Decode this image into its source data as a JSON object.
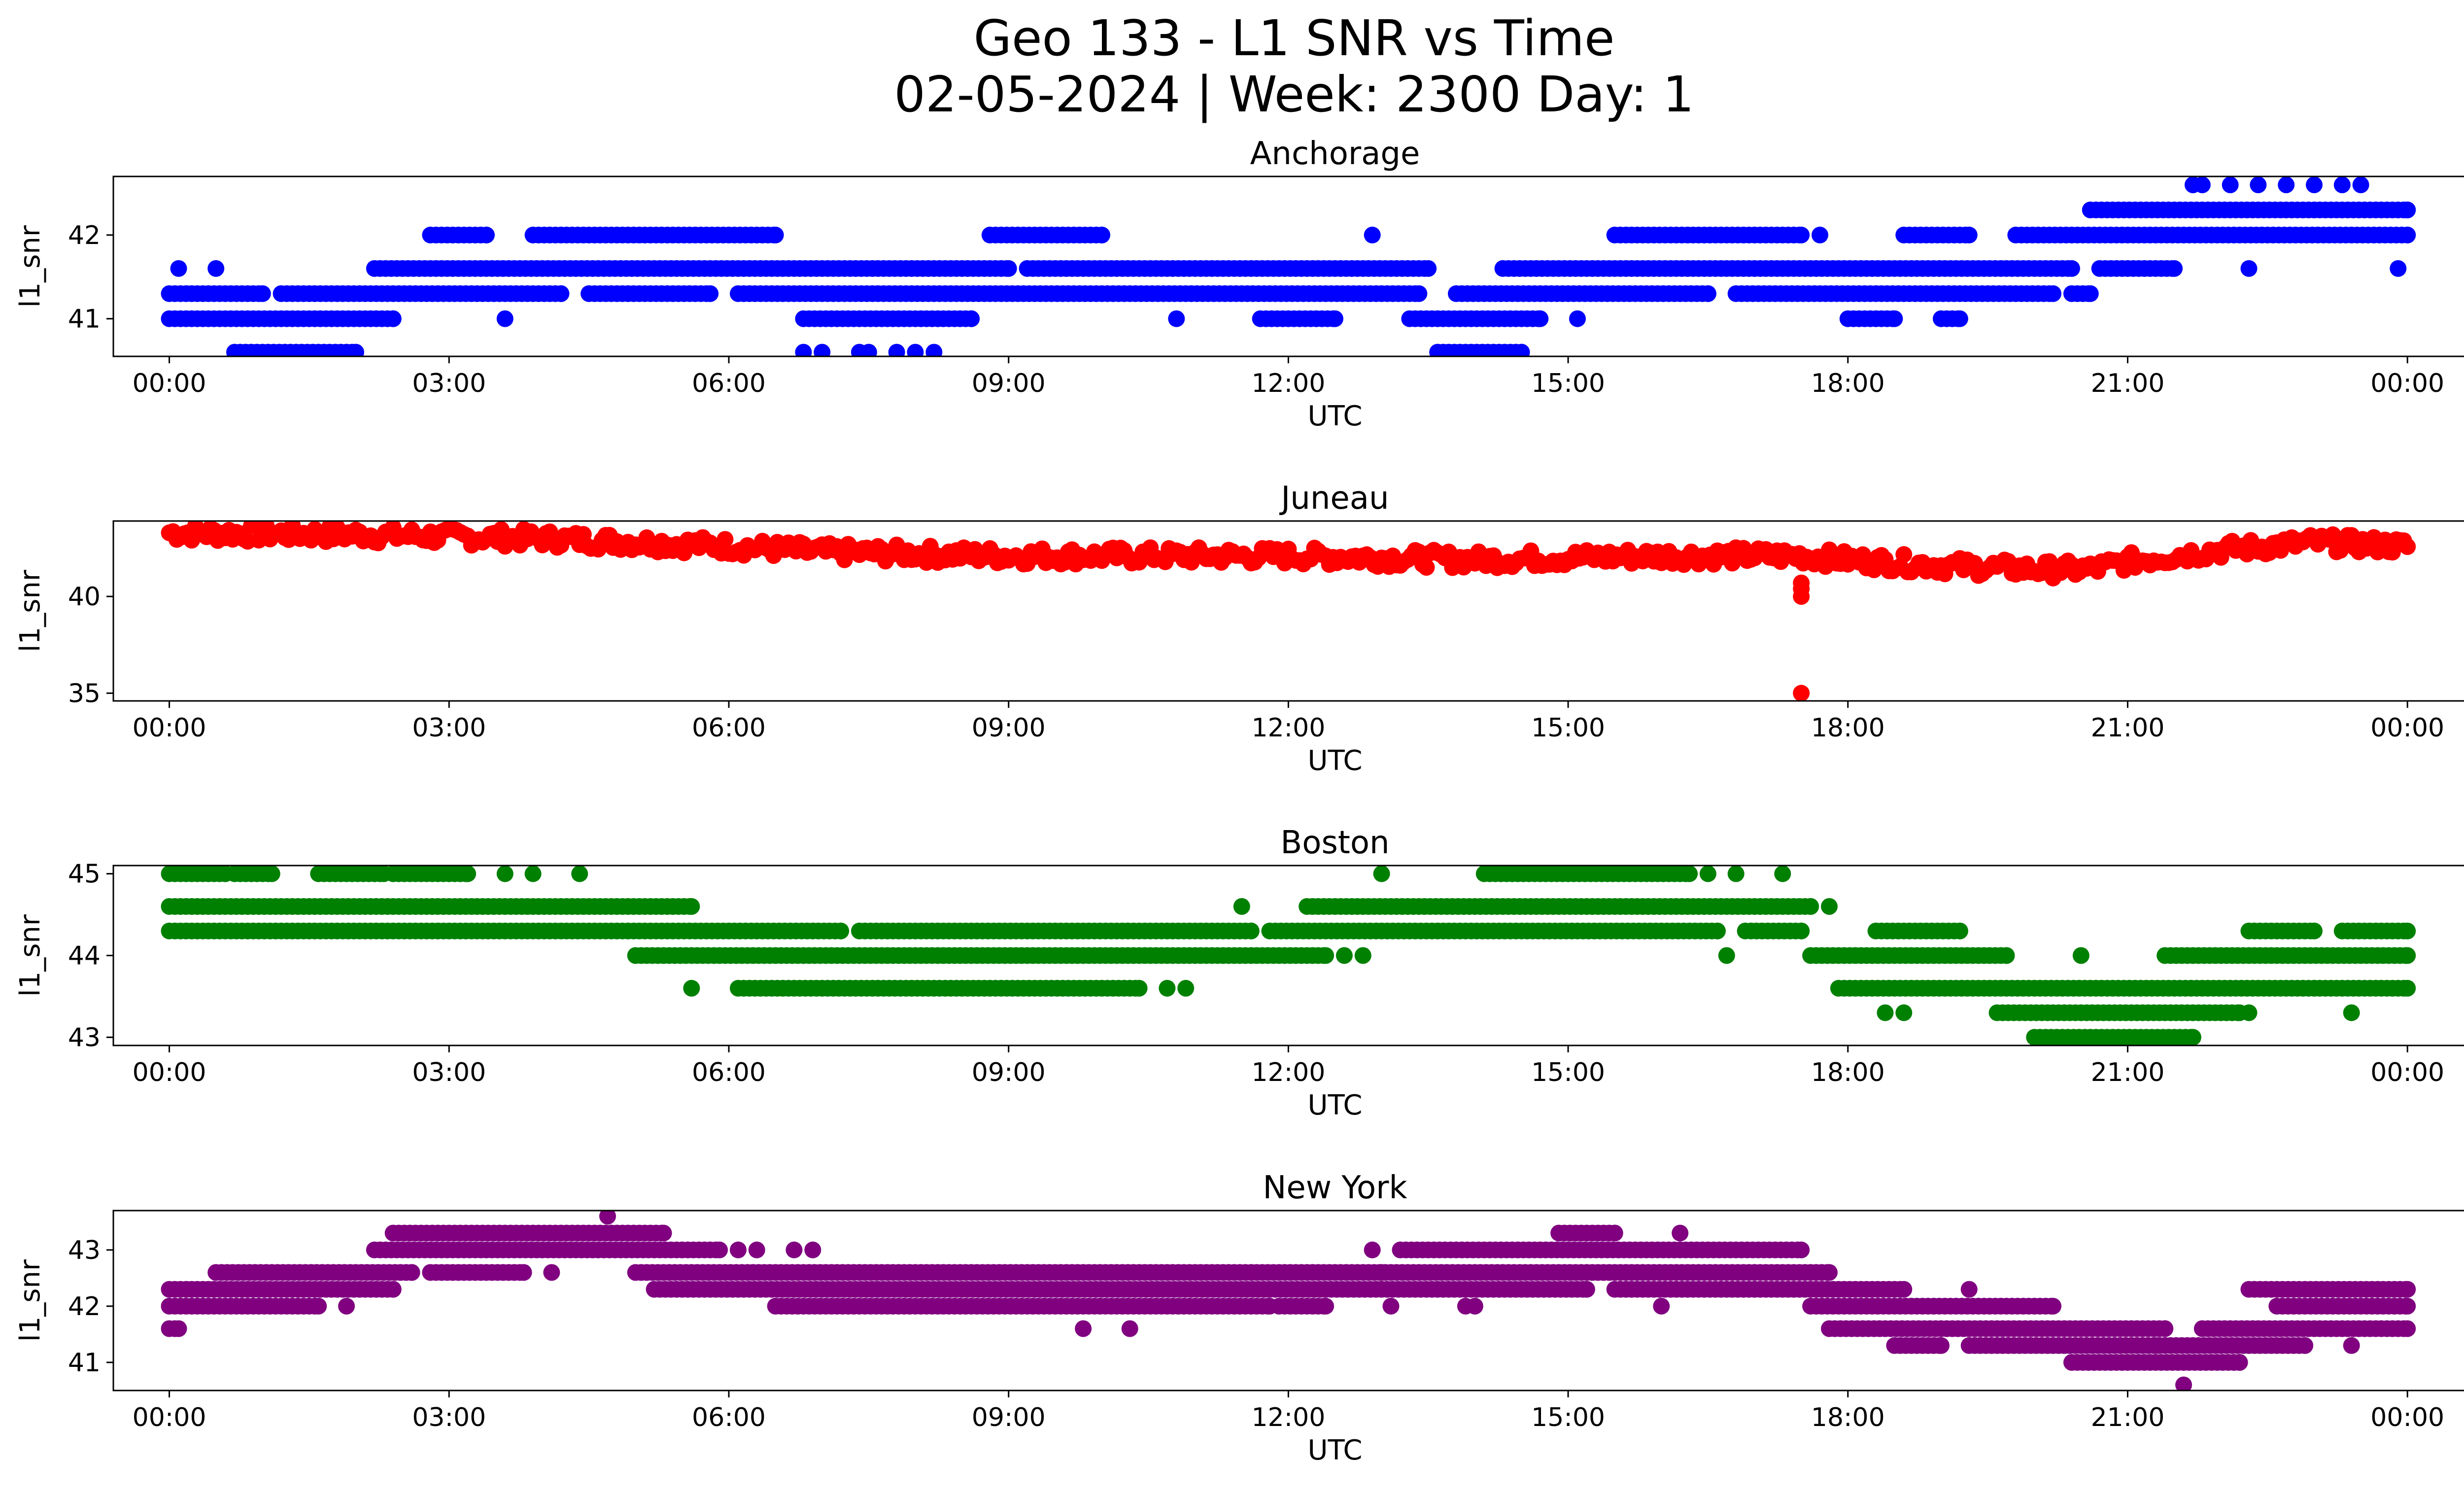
{
  "figure": {
    "title_line1": "Geo 133 - L1 SNR vs Time",
    "title_line2": "02-05-2024 | Week: 2300 Day: 1"
  },
  "chart_data": [
    {
      "type": "scatter",
      "title": "Anchorage",
      "xlabel": "UTC",
      "ylabel": "l1_snr",
      "color": "#0000ff",
      "xlim": [
        -0.6,
        25.6
      ],
      "ylim": [
        40.55,
        42.7
      ],
      "xticks": [
        0,
        3,
        6,
        9,
        12,
        15,
        18,
        21,
        24
      ],
      "xtick_labels": [
        "00:00",
        "03:00",
        "06:00",
        "09:00",
        "12:00",
        "15:00",
        "18:00",
        "21:00",
        "00:00"
      ],
      "yticks": [
        41,
        42
      ],
      "segments": [
        {
          "y": 41.0,
          "ranges": [
            [
              0.0,
              2.4
            ],
            [
              6.8,
              8.6
            ],
            [
              11.7,
              12.5
            ],
            [
              13.3,
              14.7
            ],
            [
              18.0,
              18.5
            ],
            [
              19.0,
              19.2
            ]
          ]
        },
        {
          "y": 41.3,
          "ranges": [
            [
              0.0,
              1.0
            ],
            [
              1.2,
              4.2
            ],
            [
              4.5,
              5.8
            ],
            [
              6.1,
              13.4
            ],
            [
              13.8,
              16.5
            ],
            [
              16.8,
              20.2
            ],
            [
              20.4,
              20.6
            ]
          ]
        },
        {
          "y": 41.6,
          "ranges": [
            [
              2.2,
              9.0
            ],
            [
              9.2,
              13.5
            ],
            [
              14.3,
              20.4
            ],
            [
              20.7,
              21.5
            ]
          ]
        },
        {
          "y": 42.0,
          "ranges": [
            [
              2.8,
              3.4
            ],
            [
              3.9,
              6.5
            ],
            [
              8.8,
              10.0
            ],
            [
              15.5,
              17.5
            ],
            [
              18.6,
              19.3
            ],
            [
              19.8,
              24.0
            ]
          ]
        },
        {
          "y": 42.3,
          "ranges": [
            [
              20.6,
              24.0
            ]
          ]
        },
        {
          "y": 40.6,
          "ranges": [
            [
              0.7,
              2.0
            ],
            [
              13.6,
              14.5
            ]
          ]
        }
      ],
      "points": [
        {
          "x": 0.1,
          "y": 41.6
        },
        {
          "x": 0.5,
          "y": 41.6
        },
        {
          "x": 3.6,
          "y": 41.0
        },
        {
          "x": 10.8,
          "y": 41.0
        },
        {
          "x": 12.9,
          "y": 42.0
        },
        {
          "x": 15.1,
          "y": 41.0
        },
        {
          "x": 17.7,
          "y": 42.0
        },
        {
          "x": 22.3,
          "y": 41.6
        },
        {
          "x": 6.8,
          "y": 40.6
        },
        {
          "x": 7.0,
          "y": 40.6
        },
        {
          "x": 7.4,
          "y": 40.6
        },
        {
          "x": 7.5,
          "y": 40.6
        },
        {
          "x": 7.8,
          "y": 40.6
        },
        {
          "x": 8.0,
          "y": 40.6
        },
        {
          "x": 8.2,
          "y": 40.6
        },
        {
          "x": 21.7,
          "y": 42.6
        },
        {
          "x": 21.8,
          "y": 42.6
        },
        {
          "x": 22.1,
          "y": 42.6
        },
        {
          "x": 22.4,
          "y": 42.6
        },
        {
          "x": 22.7,
          "y": 42.6
        },
        {
          "x": 23.0,
          "y": 42.6
        },
        {
          "x": 23.3,
          "y": 42.6
        },
        {
          "x": 23.5,
          "y": 42.6
        },
        {
          "x": 23.9,
          "y": 41.6
        },
        {
          "x": 24.0,
          "y": 42.3
        }
      ]
    },
    {
      "type": "scatter",
      "title": "Juneau",
      "xlabel": "UTC",
      "ylabel": "l1_snr",
      "color": "#ff0000",
      "xlim": [
        -0.6,
        25.6
      ],
      "ylim": [
        34.6,
        43.9
      ],
      "xticks": [
        0,
        3,
        6,
        9,
        12,
        15,
        18,
        21,
        24
      ],
      "xtick_labels": [
        "00:00",
        "03:00",
        "06:00",
        "09:00",
        "12:00",
        "15:00",
        "18:00",
        "21:00",
        "00:00"
      ],
      "yticks": [
        35,
        40
      ],
      "trend": [
        [
          0.0,
          43.3
        ],
        [
          2.0,
          43.2
        ],
        [
          4.0,
          43.0
        ],
        [
          5.0,
          42.8
        ],
        [
          6.0,
          42.6
        ],
        [
          7.0,
          42.3
        ],
        [
          9.0,
          42.1
        ],
        [
          12.0,
          42.1
        ],
        [
          14.0,
          41.9
        ],
        [
          16.0,
          42.1
        ],
        [
          17.5,
          42.1
        ],
        [
          18.0,
          41.9
        ],
        [
          19.0,
          41.6
        ],
        [
          20.0,
          41.4
        ],
        [
          20.6,
          41.4
        ],
        [
          21.0,
          41.8
        ],
        [
          22.0,
          42.4
        ],
        [
          23.0,
          42.8
        ],
        [
          24.0,
          42.6
        ]
      ],
      "points": [
        {
          "x": 17.5,
          "y": 40.4
        },
        {
          "x": 17.5,
          "y": 40.0
        },
        {
          "x": 17.5,
          "y": 40.7
        },
        {
          "x": 17.5,
          "y": 35.0
        }
      ]
    },
    {
      "type": "scatter",
      "title": "Boston",
      "xlabel": "UTC",
      "ylabel": "l1_snr",
      "color": "#008000",
      "xlim": [
        -0.6,
        25.6
      ],
      "ylim": [
        42.9,
        45.1
      ],
      "xticks": [
        0,
        3,
        6,
        9,
        12,
        15,
        18,
        21,
        24
      ],
      "xtick_labels": [
        "00:00",
        "03:00",
        "06:00",
        "09:00",
        "12:00",
        "15:00",
        "18:00",
        "21:00",
        "00:00"
      ],
      "yticks": [
        43,
        44,
        45
      ],
      "segments": [
        {
          "y": 45.0,
          "ranges": [
            [
              0.0,
              0.6
            ],
            [
              0.7,
              1.1
            ],
            [
              1.6,
              2.3
            ],
            [
              2.4,
              3.2
            ],
            [
              14.1,
              16.3
            ]
          ]
        },
        {
          "y": 44.6,
          "ranges": [
            [
              0.0,
              5.6
            ],
            [
              12.2,
              17.6
            ]
          ]
        },
        {
          "y": 44.3,
          "ranges": [
            [
              0.0,
              7.2
            ],
            [
              7.4,
              11.6
            ],
            [
              11.8,
              16.6
            ],
            [
              16.9,
              17.5
            ],
            [
              18.3,
              19.2
            ],
            [
              22.3,
              23.0
            ],
            [
              23.3,
              24.0
            ]
          ]
        },
        {
          "y": 44.0,
          "ranges": [
            [
              5.0,
              12.4
            ],
            [
              17.6,
              19.7
            ],
            [
              21.4,
              24.0
            ]
          ]
        },
        {
          "y": 43.6,
          "ranges": [
            [
              6.1,
              10.4
            ],
            [
              17.9,
              24.0
            ]
          ]
        },
        {
          "y": 43.3,
          "ranges": [
            [
              19.6,
              22.2
            ]
          ]
        },
        {
          "y": 43.0,
          "ranges": [
            [
              20.0,
              21.7
            ]
          ]
        }
      ],
      "points": [
        {
          "x": 3.6,
          "y": 45.0
        },
        {
          "x": 3.9,
          "y": 45.0
        },
        {
          "x": 4.4,
          "y": 45.0
        },
        {
          "x": 13.0,
          "y": 45.0
        },
        {
          "x": 16.5,
          "y": 45.0
        },
        {
          "x": 16.8,
          "y": 45.0
        },
        {
          "x": 17.3,
          "y": 45.0
        },
        {
          "x": 11.5,
          "y": 44.6
        },
        {
          "x": 17.8,
          "y": 44.6
        },
        {
          "x": 5.6,
          "y": 43.6
        },
        {
          "x": 10.7,
          "y": 43.6
        },
        {
          "x": 10.9,
          "y": 43.6
        },
        {
          "x": 12.6,
          "y": 44.0
        },
        {
          "x": 12.8,
          "y": 44.0
        },
        {
          "x": 16.7,
          "y": 44.0
        },
        {
          "x": 20.5,
          "y": 44.0
        },
        {
          "x": 18.4,
          "y": 43.3
        },
        {
          "x": 18.6,
          "y": 43.3
        },
        {
          "x": 22.3,
          "y": 43.3
        },
        {
          "x": 23.4,
          "y": 43.3
        }
      ]
    },
    {
      "type": "scatter",
      "title": "New York",
      "xlabel": "UTC",
      "ylabel": "l1_snr",
      "color": "#800080",
      "xlim": [
        -0.6,
        25.6
      ],
      "ylim": [
        40.5,
        43.7
      ],
      "xticks": [
        0,
        3,
        6,
        9,
        12,
        15,
        18,
        21,
        24
      ],
      "xtick_labels": [
        "00:00",
        "03:00",
        "06:00",
        "09:00",
        "12:00",
        "15:00",
        "18:00",
        "21:00",
        "00:00"
      ],
      "yticks": [
        41,
        42,
        43
      ],
      "segments": [
        {
          "y": 41.6,
          "ranges": [
            [
              0.0,
              0.1
            ],
            [
              17.8,
              21.4
            ],
            [
              21.8,
              24.0
            ]
          ]
        },
        {
          "y": 42.0,
          "ranges": [
            [
              0.0,
              1.6
            ],
            [
              6.5,
              11.8
            ],
            [
              11.9,
              12.4
            ],
            [
              17.6,
              20.2
            ],
            [
              22.6,
              24.0
            ]
          ]
        },
        {
          "y": 42.3,
          "ranges": [
            [
              0.0,
              2.4
            ],
            [
              5.2,
              15.2
            ],
            [
              15.5,
              18.6
            ],
            [
              22.3,
              24.0
            ]
          ]
        },
        {
          "y": 42.6,
          "ranges": [
            [
              0.5,
              2.6
            ],
            [
              2.8,
              3.8
            ],
            [
              5.0,
              17.8
            ]
          ]
        },
        {
          "y": 43.0,
          "ranges": [
            [
              2.2,
              5.9
            ],
            [
              13.2,
              17.5
            ]
          ]
        },
        {
          "y": 43.3,
          "ranges": [
            [
              2.4,
              5.3
            ],
            [
              14.9,
              15.5
            ]
          ]
        },
        {
          "y": 41.3,
          "ranges": [
            [
              18.5,
              19.0
            ],
            [
              19.3,
              22.9
            ]
          ]
        },
        {
          "y": 41.0,
          "ranges": [
            [
              20.4,
              22.2
            ]
          ]
        }
      ],
      "points": [
        {
          "x": 4.7,
          "y": 43.6
        },
        {
          "x": 4.1,
          "y": 42.6
        },
        {
          "x": 9.8,
          "y": 41.6
        },
        {
          "x": 10.3,
          "y": 41.6
        },
        {
          "x": 16.2,
          "y": 43.3
        },
        {
          "x": 12.9,
          "y": 43.0
        },
        {
          "x": 13.0,
          "y": 42.6
        },
        {
          "x": 13.1,
          "y": 42.0
        },
        {
          "x": 13.9,
          "y": 42.0
        },
        {
          "x": 14.0,
          "y": 42.0
        },
        {
          "x": 16.0,
          "y": 42.0
        },
        {
          "x": 6.1,
          "y": 43.0
        },
        {
          "x": 6.3,
          "y": 43.0
        },
        {
          "x": 6.7,
          "y": 43.0
        },
        {
          "x": 6.9,
          "y": 43.0
        },
        {
          "x": 1.9,
          "y": 42.0
        },
        {
          "x": 23.4,
          "y": 41.3
        },
        {
          "x": 21.6,
          "y": 40.6
        },
        {
          "x": 19.3,
          "y": 42.3
        },
        {
          "x": 21.3,
          "y": 41.3
        }
      ]
    }
  ]
}
